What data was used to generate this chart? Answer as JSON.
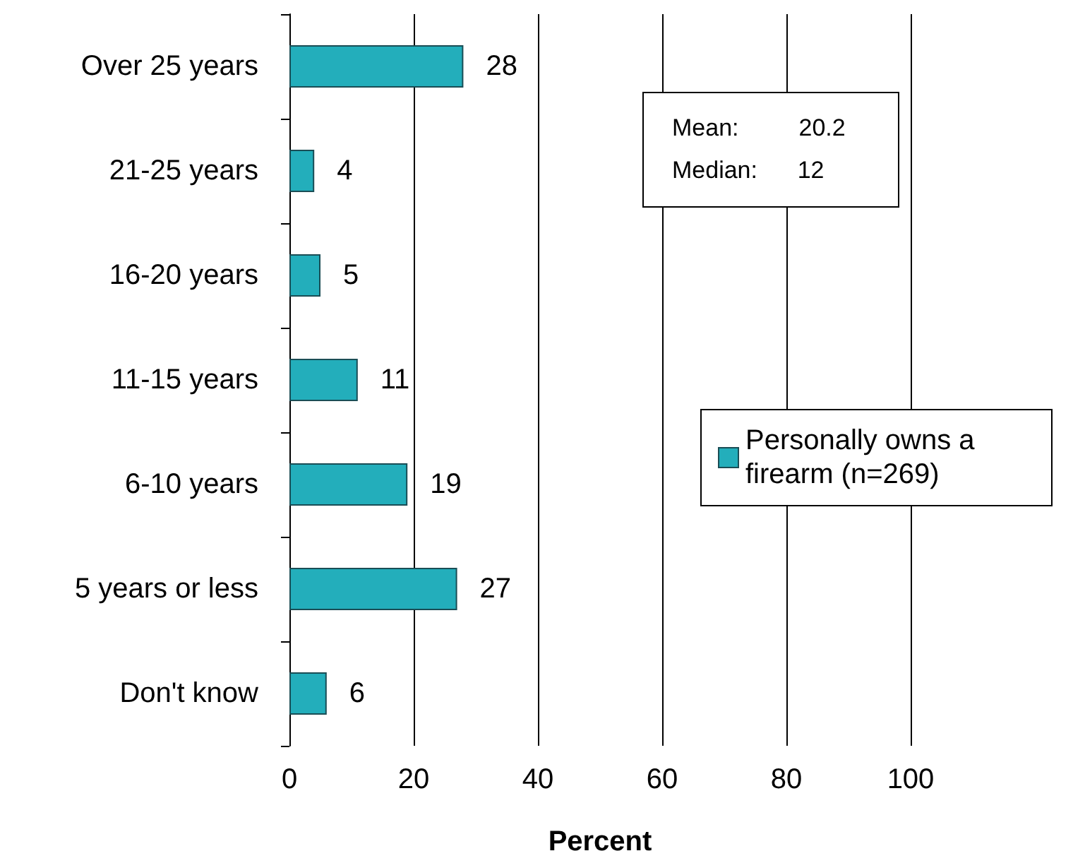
{
  "chart_data": {
    "type": "bar",
    "orientation": "horizontal",
    "xlabel": "Percent",
    "categories": [
      "Over 25 years",
      "21-25 years",
      "16-20 years",
      "11-15 years",
      "6-10 years",
      "5 years or less",
      "Don't know"
    ],
    "series": [
      {
        "name": "Personally owns a firearm (n=269)",
        "color": "#23aebb",
        "values": [
          28,
          4,
          5,
          11,
          19,
          27,
          6
        ]
      }
    ],
    "xlim": [
      0,
      100
    ],
    "xticks": [
      0,
      20,
      40,
      60,
      80,
      100
    ],
    "grid": "x",
    "legend": "right",
    "data_labels": true,
    "annotations": [
      "Mean:         20.2",
      "Median:      12"
    ]
  }
}
